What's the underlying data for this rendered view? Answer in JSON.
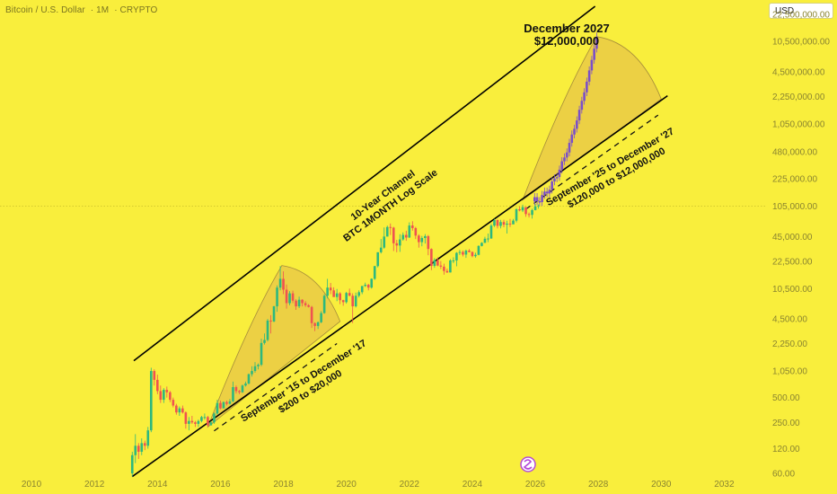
{
  "header": {
    "symbol": "Bitcoin / U.S. Dollar",
    "interval": "1M",
    "exchange": "CRYPTO",
    "currency": "USD"
  },
  "chart_data": {
    "type": "candlestick",
    "y_scale": "log",
    "y_ticks": [
      "22,500,000.00",
      "10,500,000.00",
      "4,500,000.00",
      "2,250,000.00",
      "1,050,000.00",
      "480,000.00",
      "225,000.00",
      "105,000.00",
      "45,000.00",
      "22,500.00",
      "10,500.00",
      "4,500.00",
      "2,250.00",
      "1,050.00",
      "500.00",
      "250.00",
      "120.00",
      "60.00"
    ],
    "x_ticks": [
      "2010",
      "2012",
      "2014",
      "2016",
      "2018",
      "2020",
      "2022",
      "2024",
      "2026",
      "2028",
      "2030",
      "2032"
    ],
    "xlim": [
      2009,
      2033.3
    ],
    "ylim": [
      48,
      26000000
    ],
    "reference_price": 105000,
    "channel": {
      "upper": [
        [
          2013.25,
          1400
        ],
        [
          2027.9,
          28000000
        ]
      ],
      "lower": [
        [
          2013.2,
          55
        ],
        [
          2030.2,
          2300000
        ]
      ]
    },
    "history_ohlc": [
      [
        2013.2,
        60,
        110,
        55,
        100
      ],
      [
        2013.3,
        100,
        180,
        80,
        130
      ],
      [
        2013.4,
        130,
        140,
        90,
        110
      ],
      [
        2013.5,
        110,
        160,
        100,
        140
      ],
      [
        2013.6,
        140,
        150,
        115,
        130
      ],
      [
        2013.7,
        130,
        220,
        120,
        200
      ],
      [
        2013.8,
        200,
        1150,
        190,
        1050
      ],
      [
        2013.9,
        1050,
        1100,
        700,
        820
      ],
      [
        2014.0,
        820,
        950,
        550,
        600
      ],
      [
        2014.1,
        600,
        700,
        430,
        470
      ],
      [
        2014.2,
        470,
        650,
        430,
        620
      ],
      [
        2014.3,
        620,
        680,
        500,
        580
      ],
      [
        2014.4,
        580,
        600,
        440,
        470
      ],
      [
        2014.5,
        470,
        500,
        380,
        400
      ],
      [
        2014.6,
        400,
        420,
        310,
        330
      ],
      [
        2014.7,
        330,
        390,
        300,
        370
      ],
      [
        2014.8,
        370,
        400,
        320,
        330
      ],
      [
        2014.9,
        330,
        340,
        210,
        240
      ],
      [
        2015.0,
        240,
        290,
        200,
        260
      ],
      [
        2015.1,
        260,
        300,
        240,
        250
      ],
      [
        2015.2,
        250,
        260,
        220,
        240
      ],
      [
        2015.3,
        240,
        270,
        220,
        260
      ],
      [
        2015.4,
        260,
        300,
        250,
        290
      ],
      [
        2015.5,
        290,
        320,
        270,
        290
      ],
      [
        2015.6,
        290,
        300,
        220,
        230
      ],
      [
        2015.7,
        230,
        260,
        230,
        250
      ],
      [
        2015.8,
        250,
        330,
        240,
        320
      ],
      [
        2015.9,
        320,
        470,
        310,
        430
      ],
      [
        2016.0,
        430,
        460,
        360,
        370
      ],
      [
        2016.1,
        370,
        450,
        370,
        440
      ],
      [
        2016.2,
        440,
        460,
        400,
        420
      ],
      [
        2016.3,
        420,
        480,
        410,
        450
      ],
      [
        2016.4,
        450,
        780,
        440,
        670
      ],
      [
        2016.5,
        670,
        700,
        560,
        600
      ],
      [
        2016.6,
        600,
        620,
        550,
        580
      ],
      [
        2016.7,
        580,
        720,
        570,
        700
      ],
      [
        2016.8,
        700,
        780,
        680,
        740
      ],
      [
        2016.9,
        740,
        980,
        720,
        960
      ],
      [
        2017.0,
        960,
        1200,
        900,
        1050
      ],
      [
        2017.1,
        1050,
        1350,
        1000,
        1200
      ],
      [
        2017.2,
        1200,
        1300,
        1100,
        1250
      ],
      [
        2017.3,
        1250,
        2600,
        1200,
        2300
      ],
      [
        2017.4,
        2300,
        3000,
        2200,
        2500
      ],
      [
        2017.5,
        2500,
        4500,
        2400,
        4300
      ],
      [
        2017.6,
        4300,
        5000,
        3000,
        4200
      ],
      [
        2017.7,
        4200,
        6500,
        4100,
        6400
      ],
      [
        2017.8,
        6400,
        11500,
        5500,
        10800
      ],
      [
        2017.9,
        10800,
        19700,
        10000,
        13800
      ],
      [
        2018.0,
        13800,
        17000,
        9000,
        10200
      ],
      [
        2018.1,
        10200,
        11800,
        6000,
        7000
      ],
      [
        2018.2,
        7000,
        9800,
        6600,
        9200
      ],
      [
        2018.3,
        9200,
        9900,
        7000,
        7500
      ],
      [
        2018.4,
        7500,
        7800,
        5800,
        6400
      ],
      [
        2018.5,
        6400,
        8400,
        6100,
        7700
      ],
      [
        2018.6,
        7700,
        7800,
        6400,
        7000
      ],
      [
        2018.7,
        7000,
        7400,
        6300,
        6600
      ],
      [
        2018.8,
        6600,
        6800,
        6200,
        6300
      ],
      [
        2018.9,
        6300,
        6500,
        3500,
        4000
      ],
      [
        2019.0,
        4000,
        4100,
        3200,
        3700
      ],
      [
        2019.1,
        3700,
        4200,
        3400,
        4100
      ],
      [
        2019.2,
        4100,
        5600,
        4000,
        5300
      ],
      [
        2019.3,
        5300,
        9000,
        5200,
        8600
      ],
      [
        2019.4,
        8600,
        13800,
        8000,
        10800
      ],
      [
        2019.5,
        10800,
        12300,
        9000,
        10000
      ],
      [
        2019.6,
        10000,
        10900,
        9600,
        8300
      ],
      [
        2019.7,
        8300,
        10400,
        7400,
        9200
      ],
      [
        2019.8,
        9200,
        9500,
        6800,
        7600
      ],
      [
        2019.9,
        7600,
        7700,
        6500,
        7200
      ],
      [
        2020.0,
        7200,
        9600,
        6900,
        9300
      ],
      [
        2020.1,
        9300,
        10500,
        8500,
        8600
      ],
      [
        2020.2,
        8600,
        9200,
        4000,
        6400
      ],
      [
        2020.3,
        6400,
        9400,
        6200,
        8600
      ],
      [
        2020.4,
        8600,
        10000,
        8200,
        9500
      ],
      [
        2020.5,
        9500,
        11300,
        9000,
        11300
      ],
      [
        2020.6,
        11300,
        12400,
        11000,
        11700
      ],
      [
        2020.7,
        11700,
        12000,
        10000,
        10800
      ],
      [
        2020.8,
        10800,
        14000,
        10500,
        13800
      ],
      [
        2020.9,
        13800,
        19800,
        13400,
        19700
      ],
      [
        2021.0,
        19700,
        29000,
        19000,
        29000
      ],
      [
        2021.1,
        29000,
        42000,
        28000,
        33000
      ],
      [
        2021.2,
        33000,
        58000,
        32000,
        45000
      ],
      [
        2021.3,
        45000,
        61000,
        45000,
        58700
      ],
      [
        2021.4,
        58700,
        64800,
        47000,
        57700
      ],
      [
        2021.5,
        57700,
        59000,
        30000,
        37300
      ],
      [
        2021.6,
        37300,
        41000,
        29000,
        35000
      ],
      [
        2021.7,
        35000,
        48000,
        29300,
        41500
      ],
      [
        2021.8,
        41500,
        50500,
        40000,
        47100
      ],
      [
        2021.9,
        47100,
        52900,
        40000,
        43800
      ],
      [
        2022.0,
        43800,
        66900,
        43300,
        61300
      ],
      [
        2022.1,
        61300,
        69000,
        53000,
        57000
      ],
      [
        2022.2,
        57000,
        59000,
        42000,
        46200
      ],
      [
        2022.3,
        46200,
        48000,
        33000,
        38500
      ],
      [
        2022.4,
        38500,
        45800,
        34300,
        43200
      ],
      [
        2022.5,
        43200,
        48200,
        37000,
        45500
      ],
      [
        2022.6,
        45500,
        47000,
        26700,
        31800
      ],
      [
        2022.7,
        31800,
        32400,
        17600,
        19800
      ],
      [
        2022.8,
        19800,
        24600,
        18800,
        23300
      ],
      [
        2022.9,
        23300,
        25200,
        19600,
        20000
      ],
      [
        2023.0,
        20000,
        22700,
        18100,
        19400
      ],
      [
        2023.1,
        19400,
        21100,
        15500,
        17200
      ],
      [
        2023.2,
        17200,
        18400,
        16300,
        16500
      ],
      [
        2023.3,
        16500,
        23900,
        16500,
        23100
      ],
      [
        2023.4,
        23100,
        25200,
        21400,
        23100
      ],
      [
        2023.5,
        23100,
        29100,
        19600,
        28500
      ],
      [
        2023.6,
        28500,
        31000,
        26900,
        29200
      ],
      [
        2023.7,
        29200,
        30500,
        25800,
        27200
      ],
      [
        2023.8,
        27200,
        31300,
        24800,
        30400
      ],
      [
        2023.9,
        30400,
        31800,
        28900,
        29200
      ],
      [
        2024.0,
        29200,
        29700,
        25200,
        26000
      ],
      [
        2024.1,
        26000,
        28600,
        24900,
        27000
      ],
      [
        2024.2,
        27000,
        35200,
        26600,
        34600
      ],
      [
        2024.3,
        34600,
        38400,
        34100,
        37700
      ],
      [
        2024.4,
        37700,
        44700,
        37600,
        42300
      ],
      [
        2024.5,
        42300,
        48900,
        38500,
        42600
      ],
      [
        2024.6,
        42600,
        64000,
        42200,
        61100
      ],
      [
        2024.7,
        61100,
        73800,
        59000,
        71300
      ],
      [
        2024.8,
        71300,
        72700,
        56500,
        60600
      ],
      [
        2024.9,
        60600,
        71900,
        56500,
        67500
      ],
      [
        2025.0,
        67500,
        72000,
        58400,
        62700
      ],
      [
        2025.1,
        62700,
        70000,
        49000,
        64600
      ],
      [
        2025.2,
        64600,
        73600,
        58800,
        63300
      ],
      [
        2025.3,
        63300,
        73600,
        65500,
        70200
      ],
      [
        2025.4,
        70200,
        99800,
        66800,
        96400
      ],
      [
        2025.5,
        96400,
        104000,
        91000,
        93400
      ],
      [
        2025.6,
        93400,
        109500,
        89000,
        102400
      ],
      [
        2025.7,
        102400,
        102700,
        78200,
        84300
      ],
      [
        2025.8,
        84300,
        88000,
        76600,
        82500
      ],
      [
        2025.9,
        82500,
        97900,
        74400,
        94200
      ],
      [
        2026.0,
        94200,
        112000,
        93400,
        104600
      ],
      [
        2026.1,
        104600,
        110500,
        98200,
        107100
      ]
    ],
    "projection": {
      "start": [
        2025.9,
        120000
      ],
      "end": [
        2027.95,
        12000000
      ],
      "bars": 26
    },
    "arcs": [
      {
        "label": "2015-2017",
        "x0": 2015.6,
        "peak_x": 2017.95,
        "x1": 2019.8,
        "y0": 220,
        "peak_y": 20000,
        "y1": 4200
      },
      {
        "label": "2025-2027",
        "x0": 2025.6,
        "peak_x": 2027.95,
        "x1": 2030.0,
        "y0": 125000,
        "peak_y": 12000000,
        "y1": 2100000
      }
    ],
    "annotations": {
      "target_date": "December 2027",
      "target_price": "$12,000,000",
      "channel_title": "10-Year Channel",
      "channel_subtitle": "BTC 1MONTH Log Scale",
      "cycle1_title": "September '15 to December '17",
      "cycle1_range": "$200 to $20,000",
      "cycle2_title": "September '25 to December '27",
      "cycle2_range": "$120,000 to $12,000,000"
    },
    "colors": {
      "up": "#2db87e",
      "down": "#ef5350",
      "projection": "#7b4fc9",
      "arc_fill": "#e2b84a",
      "channel": "#000000"
    }
  }
}
